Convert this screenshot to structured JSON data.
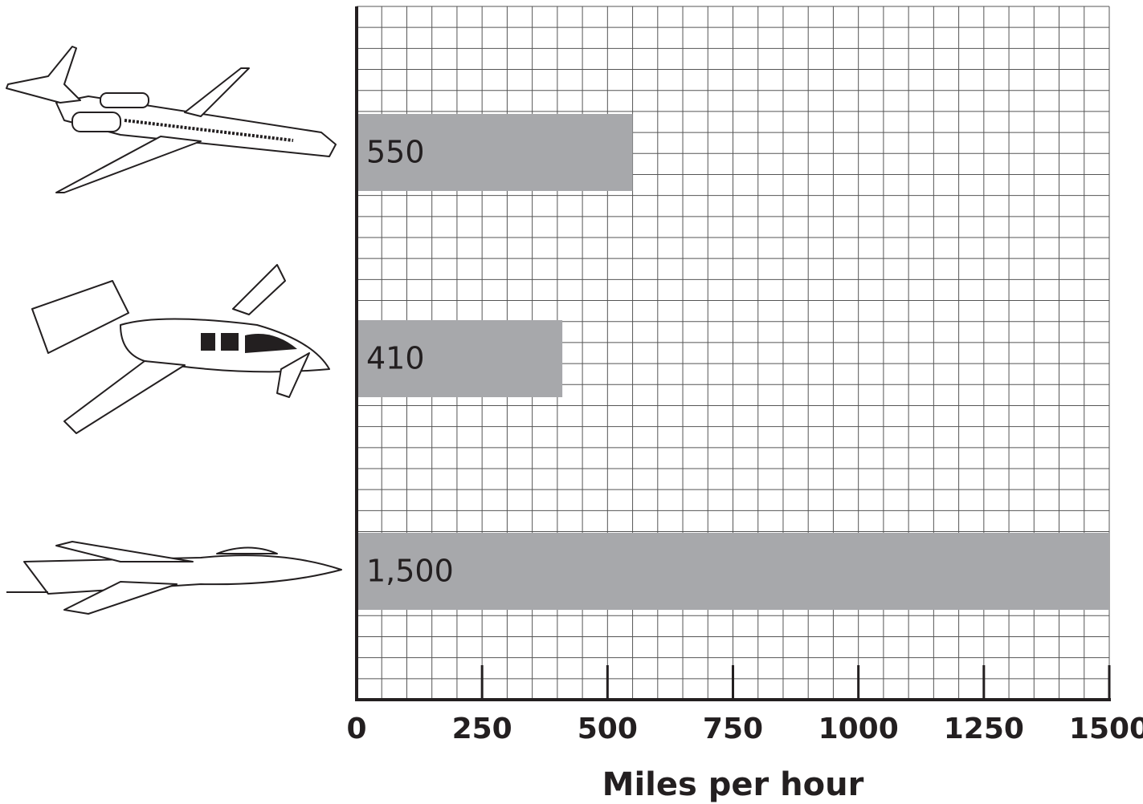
{
  "chart_data": {
    "type": "bar",
    "orientation": "horizontal",
    "categories": [
      null,
      null,
      null
    ],
    "values": [
      550,
      410,
      1500
    ],
    "value_labels": [
      "550",
      "410",
      "1,500"
    ],
    "color": "#a7a8ab",
    "xlim": [
      0,
      1500
    ],
    "xticks": [
      0,
      250,
      500,
      750,
      1000,
      1250,
      1500
    ],
    "xgrid": [
      0,
      50,
      100,
      150,
      200,
      250,
      300,
      350,
      400,
      450,
      500,
      550,
      600,
      650,
      700,
      750,
      800,
      850,
      900,
      950,
      1000,
      1050,
      1100,
      1150,
      1200,
      1250,
      1300,
      1350,
      1400,
      1450,
      1500
    ],
    "grid": true,
    "xlabel": "Miles per hour"
  }
}
